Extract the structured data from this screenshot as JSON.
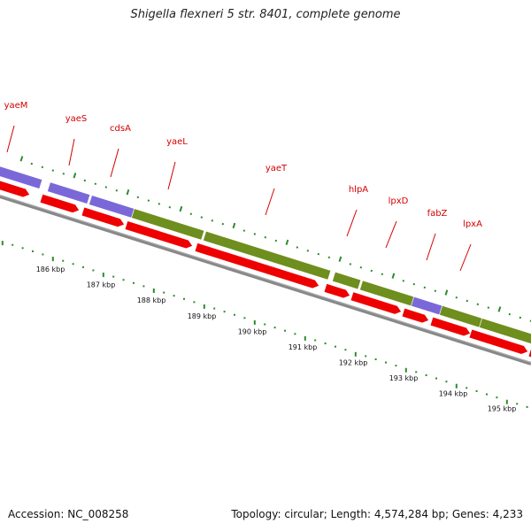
{
  "title": "Shigella flexneri 5 str. 8401, complete genome",
  "accession": "Accession: NC_008258",
  "summary": "Topology: circular; Length: 4,574,284 bp; Genes: 4,233",
  "colors": {
    "cds_blue": "#7b68d8",
    "cds_green": "#6e8e1e",
    "cds_red": "#ee0000",
    "backbone": "#888888",
    "tick": "#2e8b2e",
    "label": "#d40000"
  },
  "gene_labels": [
    "yaeM",
    "yaeS",
    "cdsA",
    "yaeL",
    "yaeT",
    "hlpA",
    "lpxD",
    "fabZ",
    "lpxA"
  ],
  "scale_labels": [
    "186 kbp",
    "187 kbp",
    "188 kbp",
    "189 kbp",
    "190 kbp",
    "191 kbp",
    "192 kbp",
    "193 kbp",
    "194 kbp",
    "195 kbp"
  ]
}
